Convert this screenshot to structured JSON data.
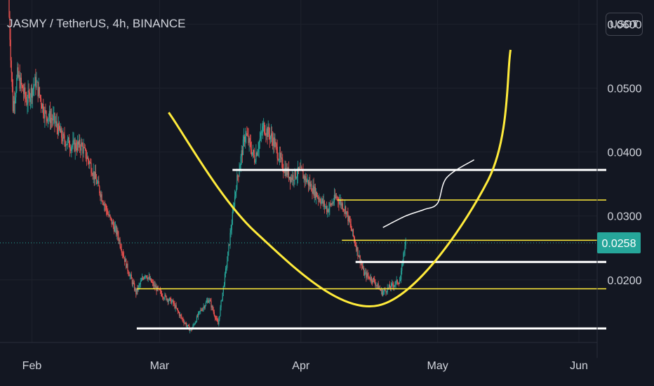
{
  "header": {
    "title": "JASMY / TetherUS, 4h, BINANCE",
    "currency_button": "USDT"
  },
  "colors": {
    "background": "#131722",
    "axis_text": "#d1d4dc",
    "grid": "#1e222d",
    "candle_up": "#26a69a",
    "candle_down": "#ef5350",
    "current_price_bg": "#26a69a",
    "drawing_yellow": "#ffeb3b",
    "drawing_white": "#ffffff"
  },
  "chart_data": {
    "type": "candlestick",
    "symbol": "JASMY / TetherUS",
    "interval": "4h",
    "exchange": "BINANCE",
    "x_ticks": [
      "Feb",
      "Mar",
      "Apr",
      "May",
      "Jun"
    ],
    "x_range": [
      "2022-01-25",
      "2022-06-05"
    ],
    "y_ticks": [
      "0.0600",
      "0.0500",
      "0.0400",
      "0.0300",
      "0.0200"
    ],
    "y_range": [
      0.0102,
      0.0638
    ],
    "current_price": 0.0258,
    "price_path": [
      [
        "2022-01-27",
        0.064
      ],
      [
        "2022-01-28",
        0.047
      ],
      [
        "2022-01-29",
        0.052
      ],
      [
        "2022-01-31",
        0.048
      ],
      [
        "2022-02-02",
        0.051
      ],
      [
        "2022-02-04",
        0.046
      ],
      [
        "2022-02-06",
        0.045
      ],
      [
        "2022-02-08",
        0.042
      ],
      [
        "2022-02-10",
        0.041
      ],
      [
        "2022-02-12",
        0.041
      ],
      [
        "2022-02-14",
        0.038
      ],
      [
        "2022-02-16",
        0.034
      ],
      [
        "2022-02-18",
        0.03
      ],
      [
        "2022-02-20",
        0.027
      ],
      [
        "2022-02-22",
        0.022
      ],
      [
        "2022-02-24",
        0.018
      ],
      [
        "2022-02-26",
        0.021
      ],
      [
        "2022-02-28",
        0.019
      ],
      [
        "2022-03-02",
        0.0175
      ],
      [
        "2022-03-04",
        0.0165
      ],
      [
        "2022-03-06",
        0.014
      ],
      [
        "2022-03-08",
        0.012
      ],
      [
        "2022-03-10",
        0.015
      ],
      [
        "2022-03-12",
        0.017
      ],
      [
        "2022-03-14",
        0.013
      ],
      [
        "2022-03-16",
        0.023
      ],
      [
        "2022-03-18",
        0.035
      ],
      [
        "2022-03-20",
        0.043
      ],
      [
        "2022-03-22",
        0.039
      ],
      [
        "2022-03-24",
        0.044
      ],
      [
        "2022-03-26",
        0.042
      ],
      [
        "2022-03-28",
        0.038
      ],
      [
        "2022-03-30",
        0.036
      ],
      [
        "2022-04-01",
        0.037
      ],
      [
        "2022-04-03",
        0.035
      ],
      [
        "2022-04-05",
        0.033
      ],
      [
        "2022-04-07",
        0.031
      ],
      [
        "2022-04-09",
        0.033
      ],
      [
        "2022-04-11",
        0.031
      ],
      [
        "2022-04-13",
        0.026
      ],
      [
        "2022-04-15",
        0.021
      ],
      [
        "2022-04-17",
        0.02
      ],
      [
        "2022-04-19",
        0.018
      ],
      [
        "2022-04-21",
        0.019
      ],
      [
        "2022-04-23",
        0.02
      ],
      [
        "2022-04-24",
        0.0258
      ]
    ],
    "drawings": {
      "white_lines": [
        {
          "price": 0.0372,
          "from": "2022-03-17",
          "to": "2022-06-07"
        },
        {
          "price": 0.0228,
          "from": "2022-04-13",
          "to": "2022-06-07"
        },
        {
          "price": 0.0124,
          "from": "2022-02-24",
          "to": "2022-06-07"
        }
      ],
      "yellow_lines": [
        {
          "price": 0.0325,
          "from": "2022-04-09",
          "to": "2022-06-07"
        },
        {
          "price": 0.0262,
          "from": "2022-04-10",
          "to": "2022-06-07"
        },
        {
          "price": 0.0186,
          "from": "2022-02-24",
          "to": "2022-06-07"
        }
      ],
      "cup_curve": [
        [
          "2022-03-03",
          0.0462
        ],
        [
          "2022-03-22",
          0.0275
        ],
        [
          "2022-04-18",
          0.016
        ],
        [
          "2022-05-12",
          0.0355
        ],
        [
          "2022-05-17",
          0.056
        ]
      ],
      "projection_squiggle": [
        [
          "2022-04-19",
          0.0282
        ],
        [
          "2022-04-24",
          0.03
        ],
        [
          "2022-04-28",
          0.031
        ],
        [
          "2022-05-01",
          0.032
        ],
        [
          "2022-05-03",
          0.036
        ],
        [
          "2022-05-09",
          0.0388
        ]
      ]
    }
  }
}
